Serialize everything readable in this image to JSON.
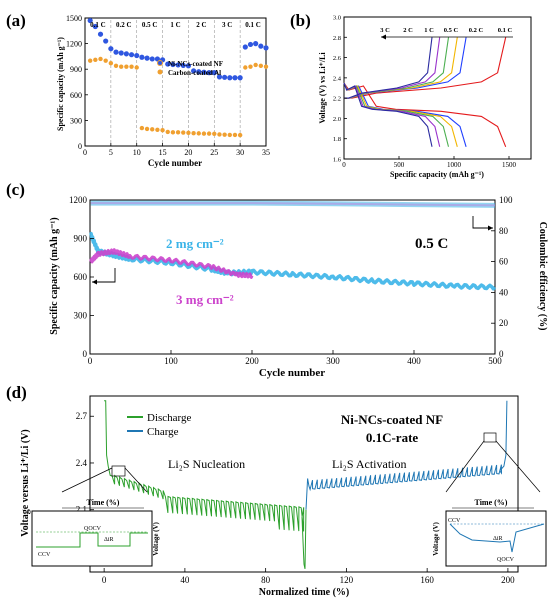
{
  "panels": {
    "a": {
      "label": "(a)",
      "xlabel": "Cycle number",
      "ylabel": "Specific capacity (mAh g⁻¹)",
      "rate_labels": [
        "0.1 C",
        "0.2 C",
        "0.5 C",
        "1 C",
        "2 C",
        "3 C",
        "0.1 C"
      ],
      "legend": [
        "Ni-NCs-coated NF",
        "Carbon-coated Al"
      ],
      "xticks": [
        "0",
        "5",
        "10",
        "15",
        "20",
        "25",
        "30",
        "35"
      ],
      "yticks": [
        "0",
        "300",
        "600",
        "900",
        "1200",
        "1500"
      ]
    },
    "b": {
      "label": "(b)",
      "xlabel": "Specific capacity (mAh g⁻¹)",
      "ylabel": "Voltage (V) vs Li⁺/Li",
      "rate_labels": [
        "3 C",
        "2 C",
        "1 C",
        "0.5 C",
        "0.2 C",
        "0.1 C"
      ],
      "xticks": [
        "0",
        "500",
        "1000",
        "1500"
      ],
      "yticks": [
        "1.6",
        "1.8",
        "2.0",
        "2.2",
        "2.4",
        "2.6",
        "2.8",
        "3.0"
      ]
    },
    "c": {
      "label": "(c)",
      "xlabel": "Cycle number",
      "ylabel_left": "Specific capacity (mAh g⁻¹)",
      "ylabel_right": "Coulombic efficiency (%)",
      "series_label_1": "2 mg cm⁻²",
      "series_label_2": "3 mg cm⁻²",
      "rate": "0.5 C",
      "xticks": [
        "0",
        "100",
        "200",
        "300",
        "400",
        "500"
      ],
      "yticks_left": [
        "0",
        "300",
        "600",
        "900",
        "1200"
      ],
      "yticks_right": [
        "0",
        "20",
        "40",
        "60",
        "80",
        "100"
      ]
    },
    "d": {
      "label": "(d)",
      "xlabel": "Normalized time (%)",
      "ylabel": "Voltage versus Li⁺/Li (V)",
      "legend": [
        "Discharge",
        "Charge"
      ],
      "title_line1": "Ni-NCs-coated NF",
      "title_line2": "0.1C-rate",
      "annot_nucleation": "Li₂S Nucleation",
      "annot_activation": "Li₂S Activation",
      "inset_left": {
        "xlabel": "Time (%)",
        "ylabel": "Voltage (V)",
        "qocv": "QOCV",
        "ccv": "CCV",
        "dir": "ΔiR"
      },
      "inset_right": {
        "xlabel": "Time (%)",
        "ylabel": "Voltage (V)",
        "qocv": "QOCV",
        "ccv": "CCV",
        "dir": "ΔiR"
      },
      "xticks": [
        "0",
        "40",
        "80",
        "120",
        "160",
        "200"
      ],
      "yticks": [
        "1.8",
        "2.1",
        "2.4",
        "2.7"
      ]
    }
  },
  "colors": {
    "ni_ncs": "#2f57e0",
    "carbon": "#f0a030",
    "c_2mg": "#3bb4e8",
    "c_3mg": "#cc44cc",
    "discharge": "#2ca02c",
    "charge": "#1f77b4",
    "b_curves": [
      "#e41a1c",
      "#1f3fff",
      "#f2b600",
      "#4caf50",
      "#9933cc",
      "#2a2aa0"
    ]
  },
  "chart_data": [
    {
      "type": "scatter",
      "panel": "a",
      "xlim": [
        0,
        35
      ],
      "ylim": [
        0,
        1500
      ],
      "series": [
        {
          "name": "Ni-NCs-coated NF",
          "x": [
            1,
            2,
            3,
            4,
            5,
            6,
            7,
            8,
            9,
            10,
            11,
            12,
            13,
            14,
            15,
            16,
            17,
            18,
            19,
            20,
            21,
            22,
            23,
            24,
            25,
            26,
            27,
            28,
            29,
            30,
            31,
            32,
            33,
            34,
            35
          ],
          "y": [
            1470,
            1400,
            1310,
            1230,
            1140,
            1100,
            1090,
            1080,
            1070,
            1060,
            1040,
            1030,
            1020,
            1020,
            1010,
            960,
            955,
            950,
            945,
            940,
            880,
            870,
            865,
            860,
            860,
            810,
            805,
            800,
            800,
            800,
            1160,
            1190,
            1200,
            1170,
            1150
          ]
        },
        {
          "name": "Carbon-coated Al",
          "x": [
            1,
            2,
            3,
            4,
            5,
            6,
            7,
            8,
            9,
            10,
            11,
            12,
            13,
            14,
            15,
            16,
            17,
            18,
            19,
            20,
            21,
            22,
            23,
            24,
            25,
            26,
            27,
            28,
            29,
            30,
            31,
            32,
            33,
            34,
            35
          ],
          "y": [
            1000,
            1010,
            1020,
            1000,
            970,
            940,
            930,
            930,
            930,
            920,
            210,
            200,
            195,
            190,
            185,
            165,
            160,
            160,
            158,
            155,
            150,
            148,
            145,
            145,
            143,
            135,
            133,
            130,
            130,
            128,
            920,
            930,
            950,
            940,
            930
          ]
        }
      ]
    },
    {
      "type": "line",
      "panel": "b",
      "xlim": [
        0,
        1700
      ],
      "ylim": [
        1.6,
        3.0
      ],
      "series": [
        {
          "name": "0.1 C",
          "capacity": 1470
        },
        {
          "name": "0.2 C",
          "capacity": 1110
        },
        {
          "name": "0.5 C",
          "capacity": 1030
        },
        {
          "name": "1 C",
          "capacity": 950
        },
        {
          "name": "2 C",
          "capacity": 870
        },
        {
          "name": "3 C",
          "capacity": 800
        }
      ]
    },
    {
      "type": "line",
      "panel": "c",
      "xlim": [
        0,
        500
      ],
      "ylim": [
        0,
        1200
      ],
      "series": [
        {
          "name": "2 mg cm⁻²",
          "x": [
            1,
            10,
            30,
            50,
            100,
            150,
            170,
            200,
            250,
            300,
            350,
            400,
            450,
            500
          ],
          "y": [
            930,
            800,
            770,
            740,
            710,
            660,
            630,
            640,
            620,
            600,
            570,
            550,
            530,
            520
          ]
        },
        {
          "name": "3 mg cm⁻²",
          "x": [
            1,
            10,
            30,
            50,
            100,
            150,
            180,
            200
          ],
          "y": [
            720,
            780,
            800,
            760,
            730,
            680,
            620,
            610
          ]
        }
      ],
      "coulombic_efficiency": {
        "x": [
          1,
          100,
          200,
          300,
          400,
          500
        ],
        "y": [
          98,
          98,
          98,
          97.5,
          97,
          96.5
        ]
      }
    },
    {
      "type": "line",
      "panel": "d",
      "xlim": [
        0,
        205
      ],
      "ylim": [
        1.7,
        2.8
      ],
      "series": [
        {
          "name": "Discharge",
          "x": [
            0,
            2,
            5,
            10,
            20,
            30,
            40,
            60,
            80,
            98,
            100
          ],
          "y": [
            2.8,
            2.4,
            2.32,
            2.3,
            2.25,
            2.18,
            2.14,
            2.12,
            2.1,
            2.05,
            1.72
          ]
        },
        {
          "name": "Charge",
          "x": [
            100,
            102,
            110,
            120,
            140,
            160,
            180,
            196,
            198,
            200
          ],
          "y": [
            2.1,
            2.28,
            2.24,
            2.26,
            2.28,
            2.3,
            2.32,
            2.35,
            2.4,
            2.8
          ]
        }
      ]
    }
  ]
}
